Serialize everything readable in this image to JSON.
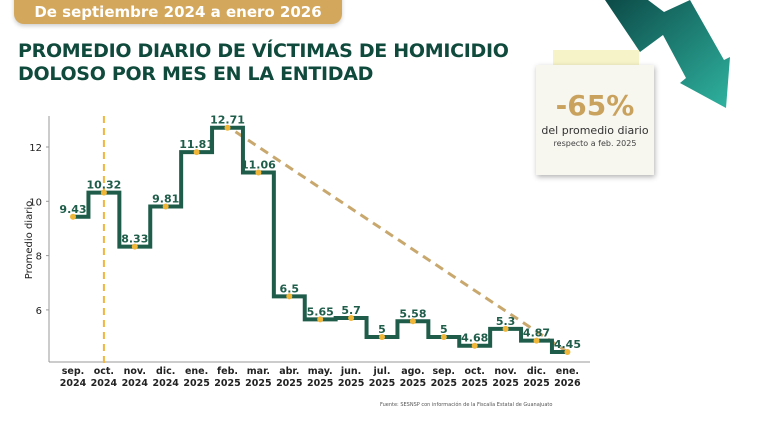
{
  "banner": "De septiembre 2024 a enero 2026",
  "title_line1": "PROMEDIO DIARIO DE VÍCTIMAS DE HOMICIDIO",
  "title_line2": "DOLOSO POR MES EN LA ENTIDAD",
  "card": {
    "value": "-65%",
    "line1": "del promedio diario",
    "line2": "respecto a feb. 2025"
  },
  "source": "Fuente: SESNSP con información de la Fiscalía Estatal de Guanajuato",
  "colors": {
    "line": "#1f5d4a",
    "dot": "#f0b63a",
    "trend": "#c9a86e",
    "banner": "#d4a85c"
  },
  "chart_data": {
    "type": "line",
    "step": true,
    "ylabel": "Promedio diario",
    "ylim": [
      4.2,
      13.2
    ],
    "yticks": [
      6,
      8,
      10,
      12
    ],
    "categories": [
      [
        "sep.",
        "2024"
      ],
      [
        "oct.",
        "2024"
      ],
      [
        "nov.",
        "2024"
      ],
      [
        "dic.",
        "2024"
      ],
      [
        "ene.",
        "2025"
      ],
      [
        "feb.",
        "2025"
      ],
      [
        "mar.",
        "2025"
      ],
      [
        "abr.",
        "2025"
      ],
      [
        "may.",
        "2025"
      ],
      [
        "jun.",
        "2025"
      ],
      [
        "jul.",
        "2025"
      ],
      [
        "ago.",
        "2025"
      ],
      [
        "sep.",
        "2025"
      ],
      [
        "oct.",
        "2025"
      ],
      [
        "nov.",
        "2025"
      ],
      [
        "dic.",
        "2025"
      ],
      [
        "ene.",
        "2026"
      ]
    ],
    "values": [
      9.43,
      10.32,
      8.33,
      9.81,
      11.81,
      12.71,
      11.06,
      6.5,
      5.65,
      5.7,
      5,
      5.58,
      5,
      4.68,
      5.3,
      4.87,
      4.45
    ],
    "labels": [
      "9.43",
      "10.32",
      "8.33",
      "9.81",
      "11.81",
      "12.71",
      "11.06",
      "6.5",
      "5.65",
      "5.7",
      "5",
      "5.58",
      "5",
      "4.68",
      "5.3",
      "4.87",
      "4.45"
    ],
    "trendline": {
      "from_index": 5,
      "to_index": 16
    },
    "vertical_marker_index": 1
  }
}
